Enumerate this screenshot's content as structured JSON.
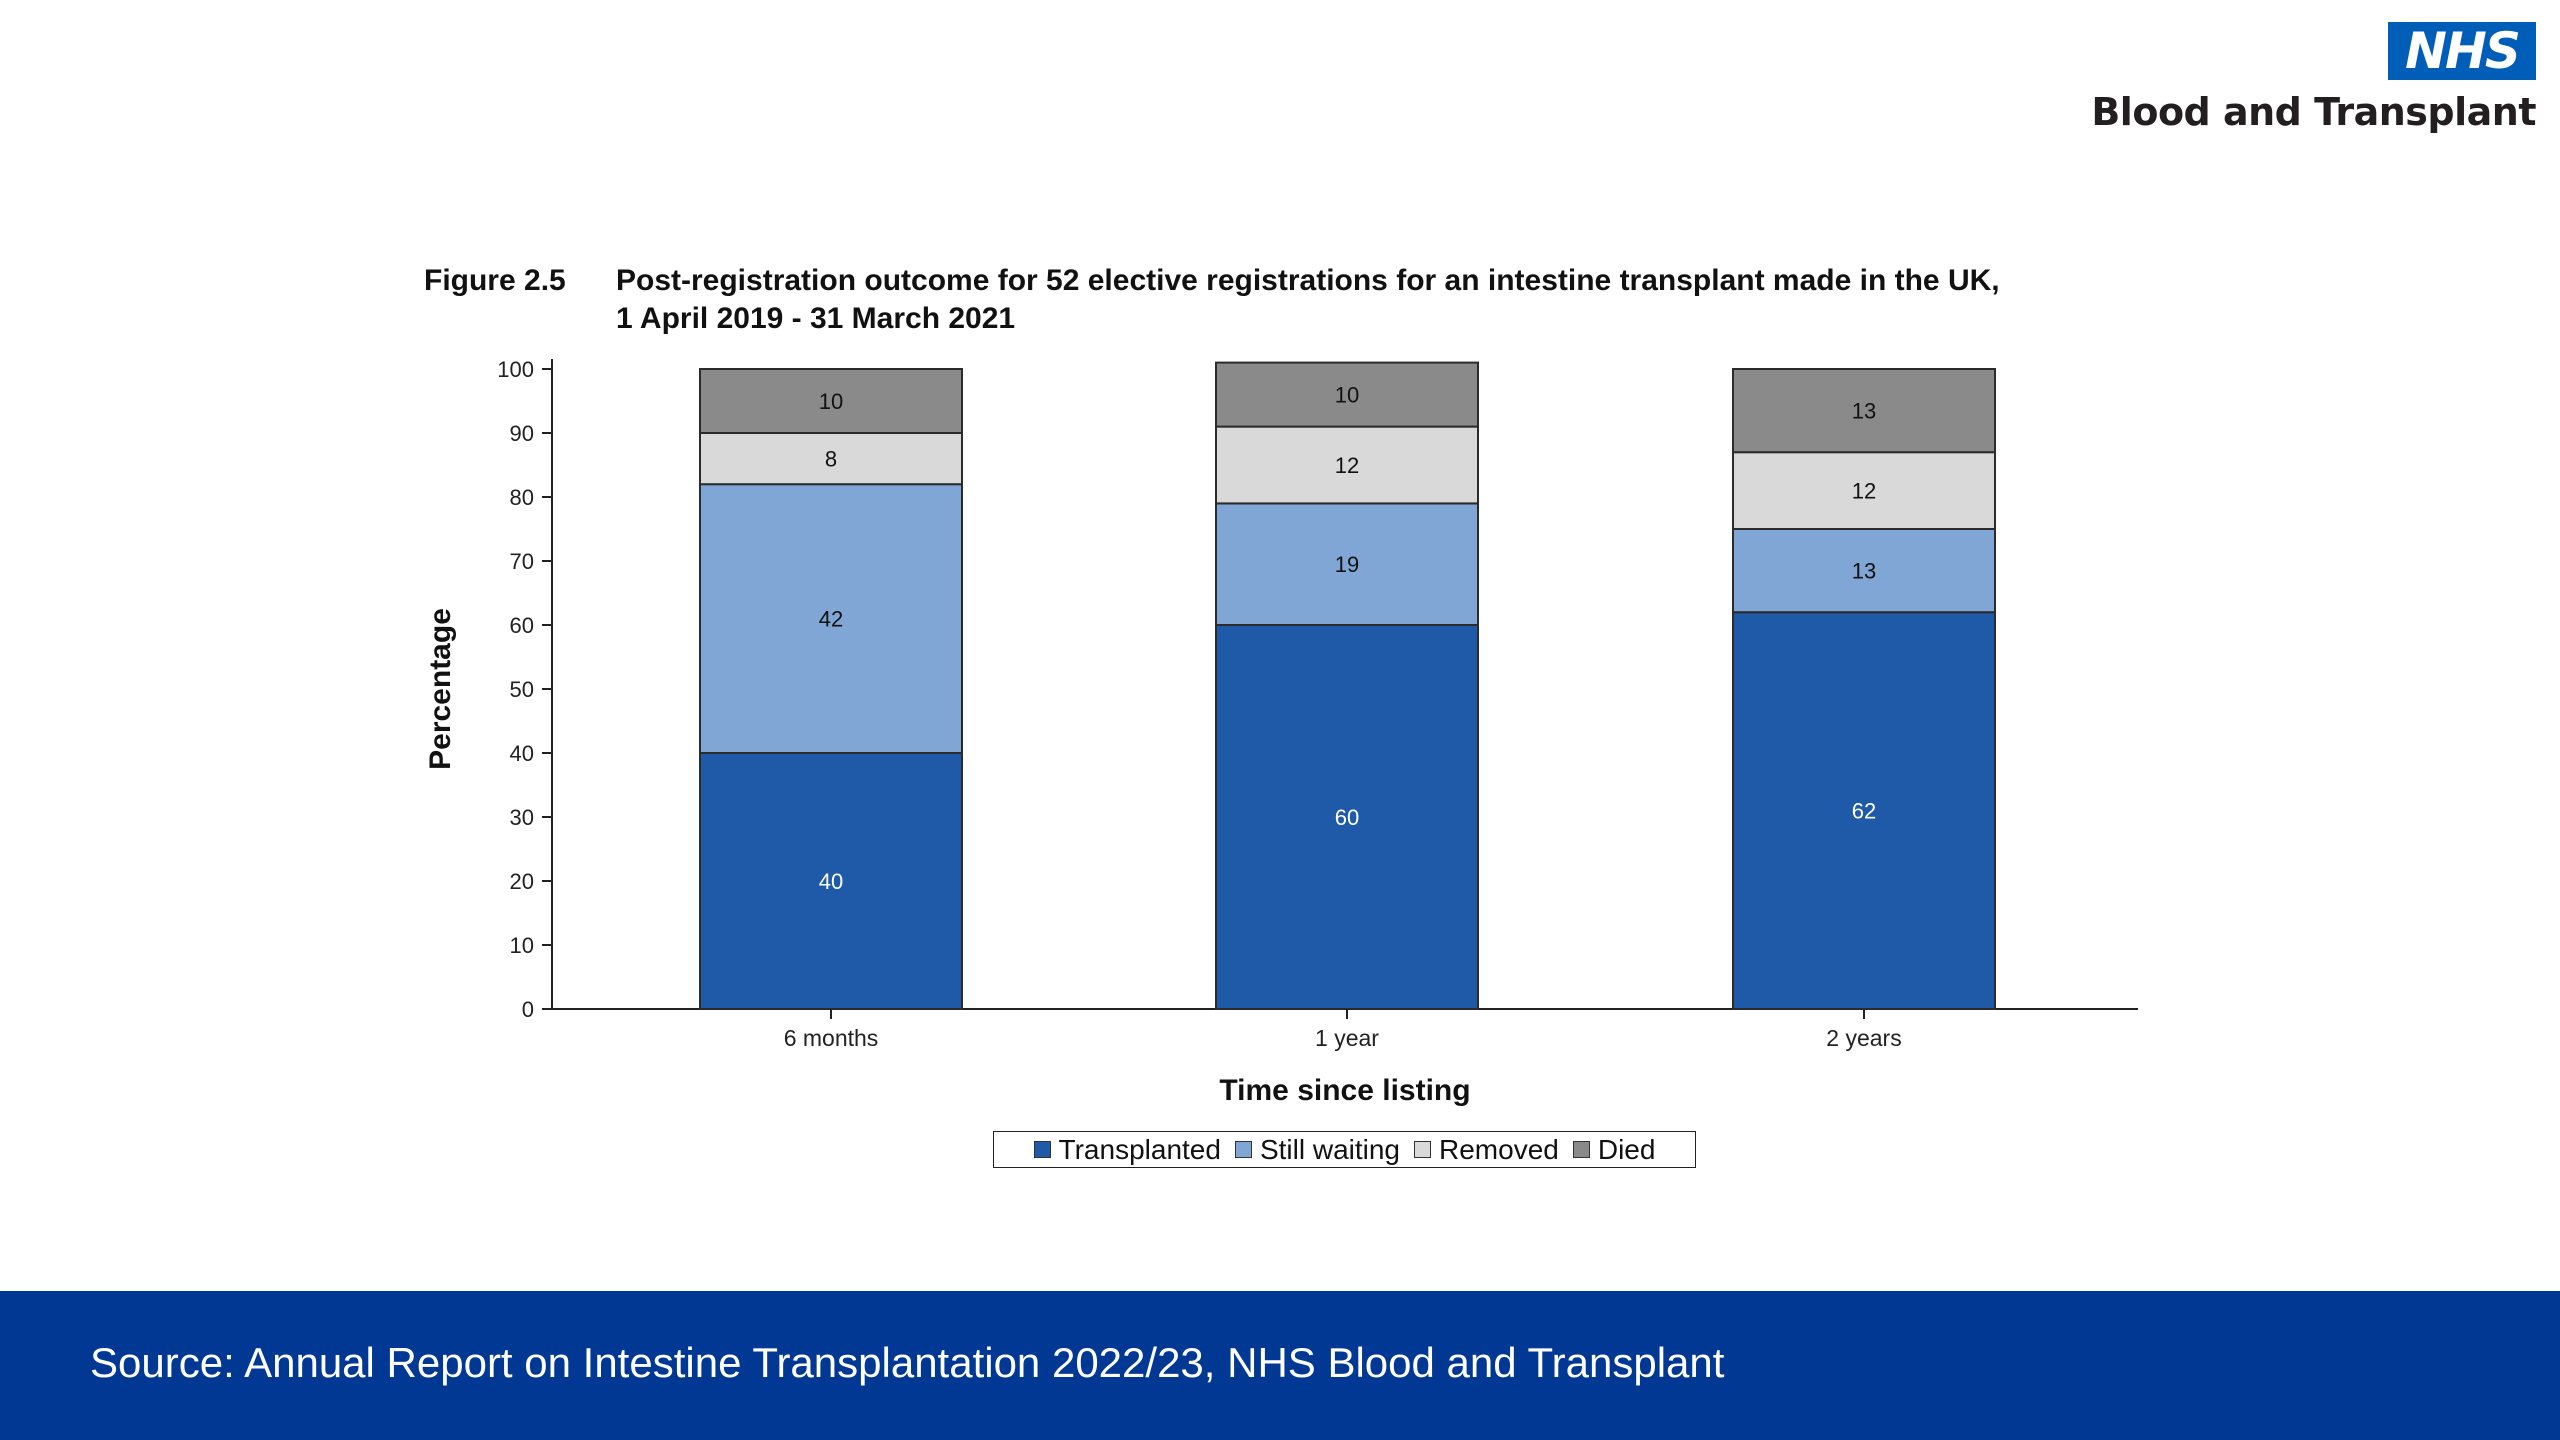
{
  "logo": {
    "mark": "NHS",
    "org": "Blood and Transplant"
  },
  "figure": {
    "number": "Figure 2.5",
    "title": "Post-registration outcome for 52 elective registrations for an intestine transplant made in the UK, 1 April 2019 - 31 March 2021"
  },
  "chart_data": {
    "type": "bar",
    "stacked": true,
    "title": "Post-registration outcome for 52 elective registrations for an intestine transplant made in the UK, 1 April 2019 - 31 March 2021",
    "xlabel": "Time since listing",
    "ylabel": "Percentage",
    "ylim": [
      0,
      100
    ],
    "yticks": [
      0,
      10,
      20,
      30,
      40,
      50,
      60,
      70,
      80,
      90,
      100
    ],
    "grid": false,
    "legend_position": "bottom",
    "categories": [
      "6 months",
      "1 year",
      "2 years"
    ],
    "series": [
      {
        "name": "Transplanted",
        "color": "#1f5aa8",
        "label_color": "#ffffff",
        "values": [
          40,
          60,
          62
        ]
      },
      {
        "name": "Still waiting",
        "color": "#7fa6d4",
        "label_color": "#111111",
        "values": [
          42,
          19,
          13
        ]
      },
      {
        "name": "Removed",
        "color": "#d9d9d9",
        "label_color": "#111111",
        "values": [
          8,
          12,
          12
        ]
      },
      {
        "name": "Died",
        "color": "#8a8a8a",
        "label_color": "#111111",
        "values": [
          10,
          10,
          13
        ]
      }
    ]
  },
  "footer": {
    "source": "Source: Annual Report on Intestine Transplantation 2022/23, NHS Blood and Transplant"
  }
}
